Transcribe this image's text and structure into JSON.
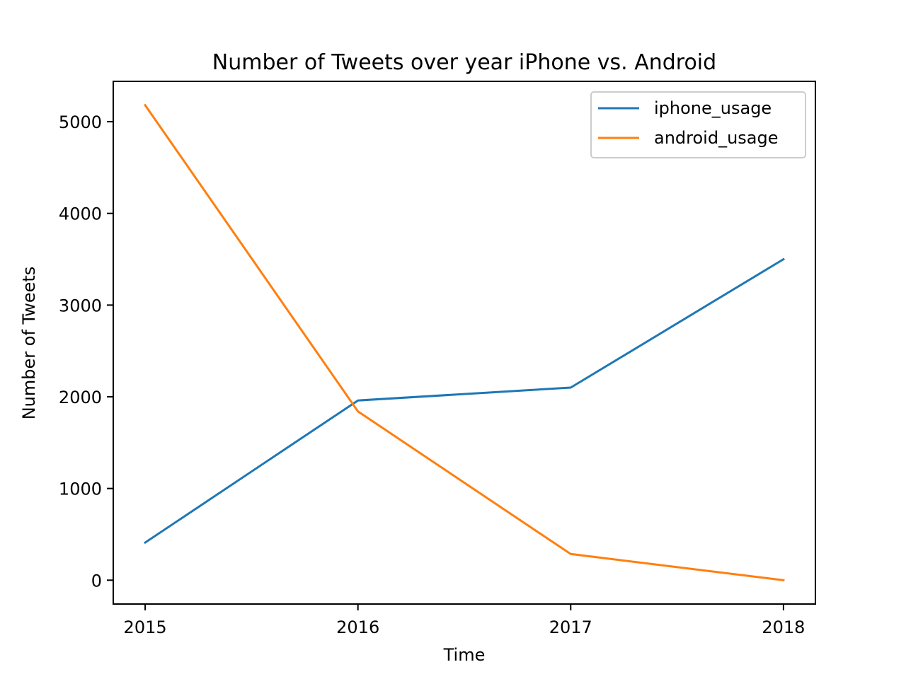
{
  "chart_data": {
    "type": "line",
    "title": "Number of Tweets over year iPhone vs. Android",
    "xlabel": "Time",
    "ylabel": "Number of Tweets",
    "x": [
      2015,
      2016,
      2017,
      2018
    ],
    "xticks": [
      "2015",
      "2016",
      "2017",
      "2018"
    ],
    "yticks": [
      0,
      1000,
      2000,
      3000,
      4000,
      5000
    ],
    "ytick_labels": [
      "0",
      "1000",
      "2000",
      "3000",
      "4000",
      "5000"
    ],
    "xlim": [
      2014.85,
      2018.15
    ],
    "ylim": [
      -260,
      5440
    ],
    "grid": false,
    "legend_position": "top-right",
    "series": [
      {
        "name": "iphone_usage",
        "values": [
          410,
          1960,
          2100,
          3500
        ],
        "color": "#1f77b4"
      },
      {
        "name": "android_usage",
        "values": [
          5180,
          1840,
          285,
          0
        ],
        "color": "#ff7f0e"
      }
    ]
  }
}
